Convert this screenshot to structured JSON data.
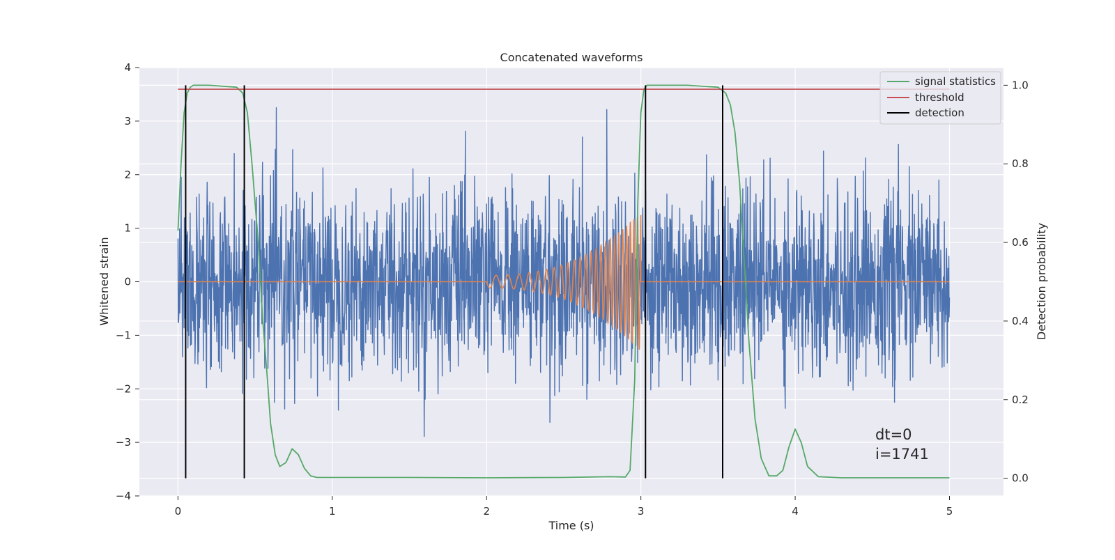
{
  "chart_data": {
    "type": "line",
    "title": "Concatenated waveforms",
    "xlabel": "Time (s)",
    "ylabel": "Whitened strain",
    "ylabel_right": "Detection probability",
    "xlim": [
      -0.25,
      5.35
    ],
    "ylim": [
      -4.0,
      4.0
    ],
    "ylim_right": [
      -0.045,
      1.045
    ],
    "x_ticks": [
      0,
      1,
      2,
      3,
      4,
      5
    ],
    "x_tick_labels": [
      "0",
      "1",
      "2",
      "3",
      "4",
      "5"
    ],
    "y_ticks": [
      -4,
      -3,
      -2,
      -1,
      0,
      1,
      2,
      3,
      4
    ],
    "y_tick_labels": [
      "−4",
      "−3",
      "−2",
      "−1",
      "0",
      "1",
      "2",
      "3",
      "4"
    ],
    "y2_ticks": [
      0.0,
      0.2,
      0.4,
      0.6,
      0.8,
      1.0
    ],
    "y2_tick_labels": [
      "0.0",
      "0.2",
      "0.4",
      "0.6",
      "0.8",
      "1.0"
    ],
    "grid": true,
    "legend_position": "top-right",
    "legend": [
      {
        "label": "signal statistics",
        "color": "#55a868"
      },
      {
        "label": "threshold",
        "color": "#c44e52"
      },
      {
        "label": "detection",
        "color": "#000000"
      }
    ],
    "annotation": [
      "dt=0",
      "i=1741"
    ],
    "colors": {
      "strain": "#4c72b0",
      "injected_signal": "#dd8452",
      "signal_statistics": "#55a868",
      "threshold": "#c44e52",
      "detection": "#000000",
      "axes_background": "#eaeaf2",
      "grid": "#ffffff"
    },
    "series": [
      {
        "role": "strain",
        "axis": "left",
        "x_range": [
          0.0,
          5.0
        ],
        "std_approx": 0.85,
        "note_range": [
          -3.6,
          3.6
        ]
      },
      {
        "role": "injected_signal",
        "axis": "left",
        "chirp_start": 2.0,
        "chirp_end": 3.0,
        "amplitude_start": 0.12,
        "amplitude_end": 1.3,
        "frequency_start": 12,
        "frequency_end": 45
      },
      {
        "role": "signal_statistics",
        "axis": "right",
        "x": [
          0.0,
          0.02,
          0.04,
          0.06,
          0.08,
          0.1,
          0.2,
          0.38,
          0.42,
          0.45,
          0.48,
          0.52,
          0.55,
          0.58,
          0.6,
          0.63,
          0.66,
          0.7,
          0.74,
          0.78,
          0.82,
          0.86,
          0.9,
          1.5,
          2.0,
          2.5,
          2.8,
          2.9,
          2.93,
          2.96,
          2.98,
          3.0,
          3.02,
          3.04,
          3.1,
          3.3,
          3.5,
          3.55,
          3.58,
          3.61,
          3.64,
          3.67,
          3.7,
          3.74,
          3.78,
          3.83,
          3.88,
          3.92,
          3.96,
          4.0,
          4.04,
          4.08,
          4.15,
          4.3,
          4.6,
          5.0
        ],
        "y": [
          0.63,
          0.8,
          0.93,
          0.98,
          0.995,
          1.0,
          1.0,
          0.995,
          0.98,
          0.93,
          0.8,
          0.6,
          0.4,
          0.25,
          0.14,
          0.06,
          0.03,
          0.04,
          0.075,
          0.06,
          0.025,
          0.006,
          0.002,
          0.002,
          0.001,
          0.002,
          0.004,
          0.003,
          0.02,
          0.25,
          0.7,
          0.93,
          0.99,
          1.0,
          1.0,
          1.0,
          0.995,
          0.98,
          0.95,
          0.88,
          0.75,
          0.55,
          0.35,
          0.15,
          0.05,
          0.006,
          0.006,
          0.02,
          0.08,
          0.125,
          0.09,
          0.03,
          0.004,
          0.001,
          0.001,
          0.001
        ]
      },
      {
        "role": "threshold",
        "axis": "right",
        "x": [
          0.0,
          5.0
        ],
        "y": [
          0.99,
          0.99
        ]
      },
      {
        "role": "detection",
        "axis": "right",
        "x_positions": [
          0.05,
          0.43,
          3.03,
          3.53
        ],
        "y_range": [
          0.0,
          1.0
        ]
      }
    ]
  }
}
